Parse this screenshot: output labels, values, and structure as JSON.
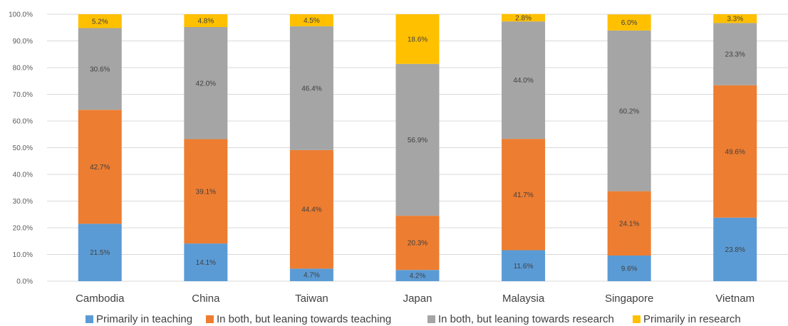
{
  "chart_data": {
    "type": "bar",
    "stacked": true,
    "categories": [
      "Cambodia",
      "China",
      "Taiwan",
      "Japan",
      "Malaysia",
      "Singapore",
      "Vietnam"
    ],
    "series": [
      {
        "name": "Primarily in teaching",
        "color": "#5B9BD5",
        "values": [
          21.5,
          14.1,
          4.7,
          4.2,
          11.6,
          9.6,
          23.8
        ]
      },
      {
        "name": "In both, but leaning towards teaching",
        "color": "#ED7D31",
        "values": [
          42.7,
          39.1,
          44.4,
          20.3,
          41.7,
          24.1,
          49.6
        ]
      },
      {
        "name": "In both, but leaning towards research",
        "color": "#A5A5A5",
        "values": [
          30.6,
          42.0,
          46.4,
          56.9,
          44.0,
          60.2,
          23.3
        ]
      },
      {
        "name": "Primarily in research",
        "color": "#FFC000",
        "values": [
          5.2,
          4.8,
          4.5,
          18.6,
          2.8,
          6.0,
          3.3
        ]
      }
    ],
    "y_ticks": [
      "0.0%",
      "10.0%",
      "20.0%",
      "30.0%",
      "40.0%",
      "50.0%",
      "60.0%",
      "70.0%",
      "80.0%",
      "90.0%",
      "100.0%"
    ],
    "ylim": [
      0,
      100
    ],
    "grid": true,
    "legend_position": "bottom",
    "title": "",
    "xlabel": "",
    "ylabel": ""
  }
}
